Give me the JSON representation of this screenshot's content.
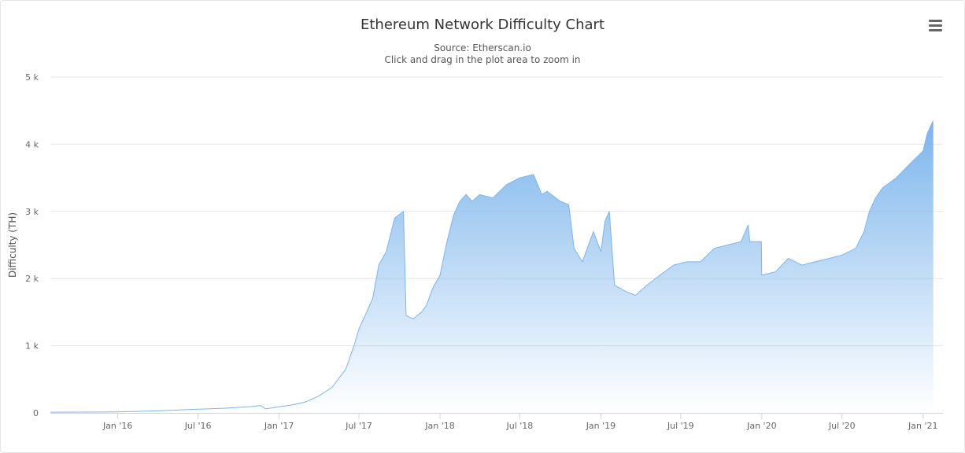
{
  "chart_data": {
    "type": "area",
    "title": "Ethereum Network Difficulty Chart",
    "subtitle": [
      "Source: Etherscan.io",
      "Click and drag in the plot area to zoom in"
    ],
    "ylabel": "Difficulty (TH)",
    "xlabel": "",
    "xlim": [
      "2015-08-01",
      "2021-02-15"
    ],
    "ylim": [
      0,
      5000
    ],
    "y_ticks": [
      0,
      1000,
      2000,
      3000,
      4000,
      5000
    ],
    "y_tick_labels": [
      "0",
      "1 k",
      "2 k",
      "3 k",
      "4 k",
      "5 k"
    ],
    "x_ticks": [
      "2016-01-01",
      "2016-07-01",
      "2017-01-01",
      "2017-07-01",
      "2018-01-01",
      "2018-07-01",
      "2019-01-01",
      "2019-07-01",
      "2020-01-01",
      "2020-07-01",
      "2021-01-01"
    ],
    "x_tick_labels": [
      "Jan '16",
      "Jul '16",
      "Jan '17",
      "Jul '17",
      "Jan '18",
      "Jul '18",
      "Jan '19",
      "Jul '19",
      "Jan '20",
      "Jul '20",
      "Jan '21"
    ],
    "grid": true,
    "legend": "none",
    "series": [
      {
        "name": "Difficulty",
        "color": "#7cb5ec",
        "points": [
          [
            "2015-08-01",
            10
          ],
          [
            "2015-10-01",
            12
          ],
          [
            "2016-01-01",
            15
          ],
          [
            "2016-04-01",
            30
          ],
          [
            "2016-07-01",
            55
          ],
          [
            "2016-09-01",
            70
          ],
          [
            "2016-11-01",
            95
          ],
          [
            "2016-11-20",
            110
          ],
          [
            "2016-12-01",
            60
          ],
          [
            "2017-01-01",
            90
          ],
          [
            "2017-02-01",
            120
          ],
          [
            "2017-03-01",
            160
          ],
          [
            "2017-04-01",
            250
          ],
          [
            "2017-05-01",
            380
          ],
          [
            "2017-06-01",
            650
          ],
          [
            "2017-06-20",
            1000
          ],
          [
            "2017-07-01",
            1250
          ],
          [
            "2017-07-15",
            1450
          ],
          [
            "2017-08-01",
            1700
          ],
          [
            "2017-08-15",
            2200
          ],
          [
            "2017-09-01",
            2400
          ],
          [
            "2017-09-20",
            2900
          ],
          [
            "2017-10-10",
            3000
          ],
          [
            "2017-10-16",
            1450
          ],
          [
            "2017-11-01",
            1400
          ],
          [
            "2017-11-20",
            1500
          ],
          [
            "2017-12-01",
            1600
          ],
          [
            "2017-12-15",
            1850
          ],
          [
            "2018-01-01",
            2050
          ],
          [
            "2018-01-15",
            2500
          ],
          [
            "2018-02-01",
            2950
          ],
          [
            "2018-02-15",
            3150
          ],
          [
            "2018-03-01",
            3250
          ],
          [
            "2018-03-15",
            3150
          ],
          [
            "2018-04-01",
            3250
          ],
          [
            "2018-05-01",
            3200
          ],
          [
            "2018-06-01",
            3400
          ],
          [
            "2018-07-01",
            3500
          ],
          [
            "2018-08-01",
            3550
          ],
          [
            "2018-08-20",
            3250
          ],
          [
            "2018-09-01",
            3300
          ],
          [
            "2018-10-01",
            3150
          ],
          [
            "2018-10-20",
            3100
          ],
          [
            "2018-11-01",
            2450
          ],
          [
            "2018-11-20",
            2250
          ],
          [
            "2018-12-01",
            2450
          ],
          [
            "2018-12-15",
            2700
          ],
          [
            "2019-01-01",
            2400
          ],
          [
            "2019-01-10",
            2850
          ],
          [
            "2019-01-20",
            3000
          ],
          [
            "2019-02-01",
            1900
          ],
          [
            "2019-03-01",
            1800
          ],
          [
            "2019-03-20",
            1750
          ],
          [
            "2019-04-15",
            1900
          ],
          [
            "2019-05-15",
            2050
          ],
          [
            "2019-06-15",
            2200
          ],
          [
            "2019-07-15",
            2250
          ],
          [
            "2019-08-15",
            2250
          ],
          [
            "2019-09-15",
            2450
          ],
          [
            "2019-10-15",
            2500
          ],
          [
            "2019-11-15",
            2550
          ],
          [
            "2019-12-01",
            2800
          ],
          [
            "2019-12-05",
            2550
          ],
          [
            "2019-12-31",
            2550
          ],
          [
            "2020-01-01",
            2050
          ],
          [
            "2020-02-01",
            2100
          ],
          [
            "2020-03-01",
            2300
          ],
          [
            "2020-04-01",
            2200
          ],
          [
            "2020-05-01",
            2250
          ],
          [
            "2020-06-01",
            2300
          ],
          [
            "2020-07-01",
            2350
          ],
          [
            "2020-08-01",
            2450
          ],
          [
            "2020-08-20",
            2700
          ],
          [
            "2020-09-01",
            3000
          ],
          [
            "2020-09-15",
            3200
          ],
          [
            "2020-10-01",
            3350
          ],
          [
            "2020-11-01",
            3500
          ],
          [
            "2020-12-01",
            3700
          ],
          [
            "2021-01-01",
            3900
          ],
          [
            "2021-01-10",
            4150
          ],
          [
            "2021-01-20",
            4300
          ],
          [
            "2021-01-24",
            4350
          ]
        ]
      }
    ]
  },
  "ui": {
    "menu_icon": "hamburger-menu-icon"
  }
}
